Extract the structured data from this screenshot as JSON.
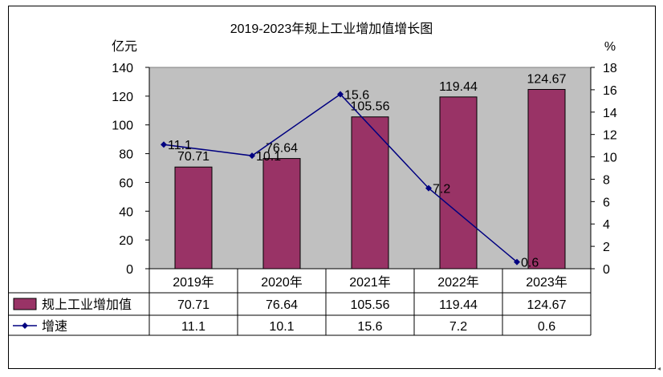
{
  "chart_data": {
    "type": "bar",
    "title": "2019-2023年规上工业增加值增长图",
    "y_left_unit": "亿元",
    "y_right_unit": "%",
    "categories": [
      "2019年",
      "2020年",
      "2021年",
      "2022年",
      "2023年"
    ],
    "ylim_left": [
      0,
      140
    ],
    "yticks_left": [
      0,
      20,
      40,
      60,
      80,
      100,
      120,
      140
    ],
    "ylim_right": [
      0,
      18
    ],
    "yticks_right": [
      0,
      2,
      4,
      6,
      8,
      10,
      12,
      14,
      16,
      18
    ],
    "grid": false,
    "plot_background": "#c0c0c0",
    "series": [
      {
        "name": "规上工业增加值",
        "type": "bar",
        "axis": "left",
        "color": "#993366",
        "values": [
          70.71,
          76.64,
          105.56,
          119.44,
          124.67
        ],
        "value_labels": [
          "70.71",
          "76.64",
          "105.56",
          "119.44",
          "124.67"
        ]
      },
      {
        "name": "增速",
        "type": "line",
        "axis": "right",
        "color": "#000080",
        "marker": "diamond",
        "values": [
          11.1,
          10.1,
          15.6,
          7.2,
          0.6
        ],
        "value_labels": [
          "11.1",
          "10.1",
          "15.6",
          "7.2",
          "0.6"
        ]
      }
    ],
    "data_table": true
  }
}
